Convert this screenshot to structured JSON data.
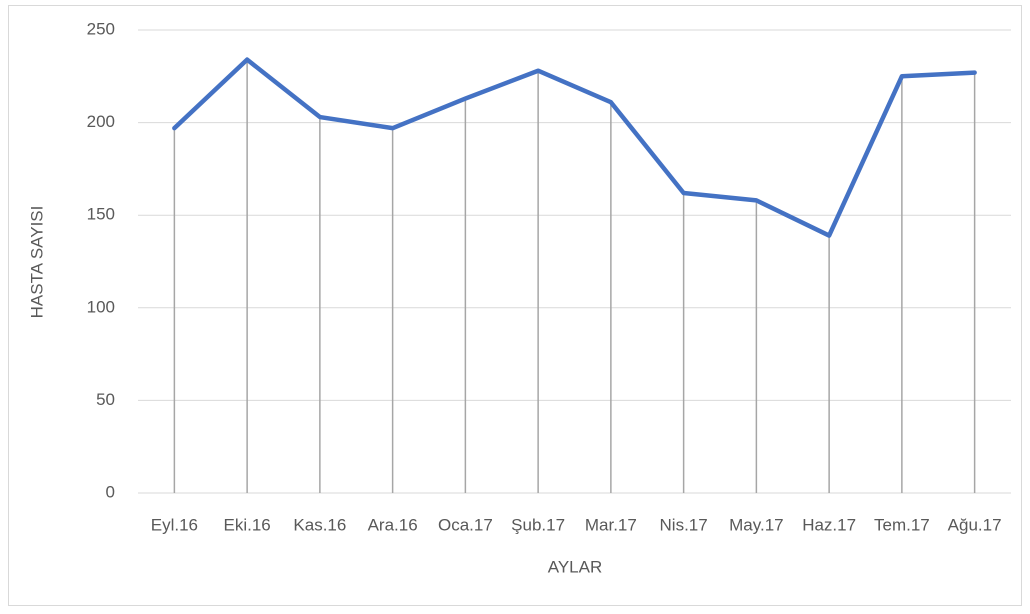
{
  "chart_data": {
    "type": "line",
    "x_label": "AYLAR",
    "y_label": "HASTA SAYISI",
    "categories": [
      "Eyl.16",
      "Eki.16",
      "Kas.16",
      "Ara.16",
      "Oca.17",
      "Şub.17",
      "Mar.17",
      "Nis.17",
      "May.17",
      "Haz.17",
      "Tem.17",
      "Ağu.17"
    ],
    "values": [
      197,
      234,
      203,
      197,
      213,
      228,
      211,
      162,
      158,
      139,
      225,
      227
    ],
    "color": "#4472c4",
    "ylim": [
      0,
      250
    ],
    "yticks": [
      0,
      50,
      100,
      150,
      200,
      250
    ],
    "grid": true,
    "drop_lines": true
  }
}
